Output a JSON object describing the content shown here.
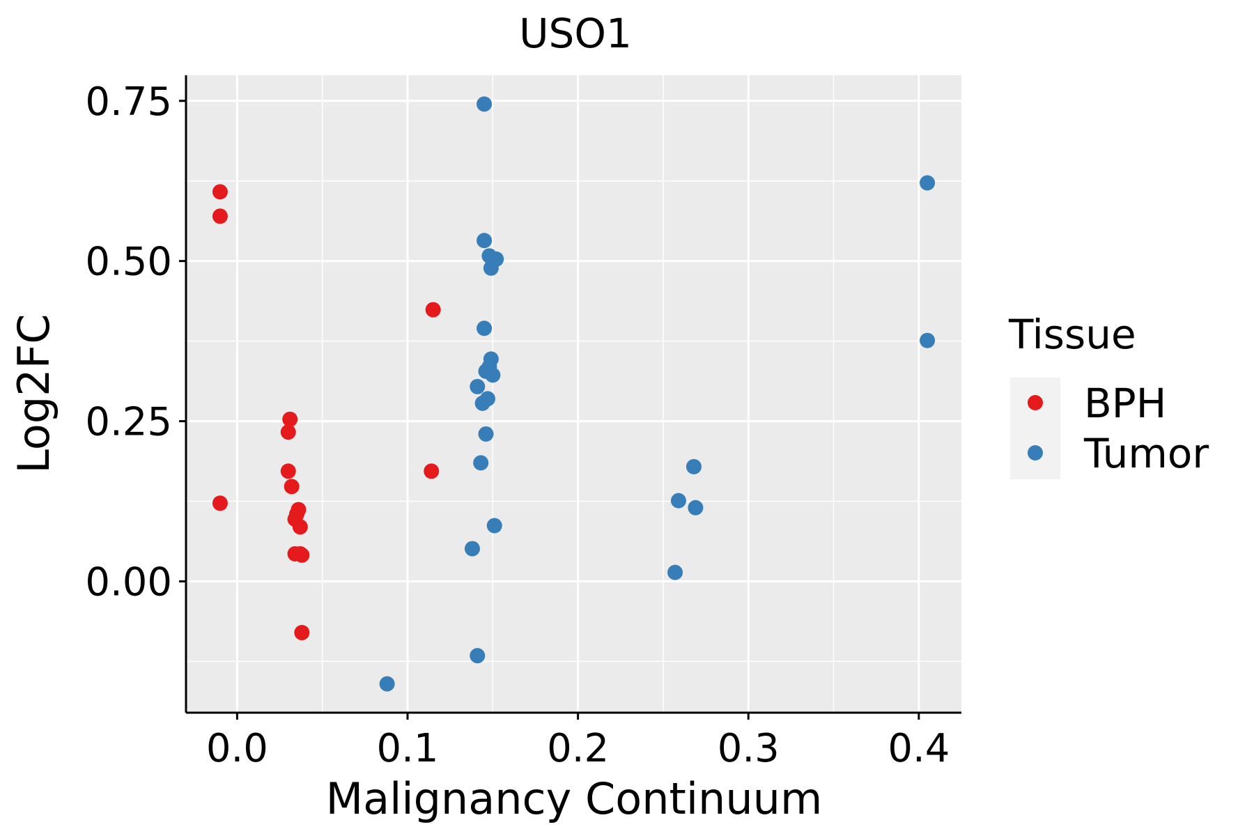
{
  "chart_data": {
    "type": "scatter",
    "title": "USO1",
    "xlabel": "Malignancy Continuum",
    "ylabel": "Log2FC",
    "xlim": [
      -0.03,
      0.425
    ],
    "ylim": [
      -0.205,
      0.79
    ],
    "x_ticks": [
      0.0,
      0.1,
      0.2,
      0.3,
      0.4
    ],
    "x_tick_labels": [
      "0.0",
      "0.1",
      "0.2",
      "0.3",
      "0.4"
    ],
    "y_ticks": [
      0.0,
      0.25,
      0.5,
      0.75
    ],
    "y_tick_labels": [
      "0.00",
      "0.25",
      "0.50",
      "0.75"
    ],
    "grid": true,
    "panel_background": "#EBEBEB",
    "legend": {
      "title": "Tissue",
      "position": "right",
      "entries": [
        {
          "label": "BPH",
          "color": "#E41A1C"
        },
        {
          "label": "Tumor",
          "color": "#377EB8"
        }
      ]
    },
    "series": [
      {
        "name": "BPH",
        "color": "#E41A1C",
        "points": [
          [
            -0.01,
            0.608
          ],
          [
            -0.01,
            0.57
          ],
          [
            -0.01,
            0.122
          ],
          [
            0.031,
            0.253
          ],
          [
            0.03,
            0.233
          ],
          [
            0.03,
            0.172
          ],
          [
            0.032,
            0.148
          ],
          [
            0.036,
            0.112
          ],
          [
            0.035,
            0.105
          ],
          [
            0.034,
            0.097
          ],
          [
            0.037,
            0.085
          ],
          [
            0.034,
            0.043
          ],
          [
            0.037,
            0.043
          ],
          [
            0.038,
            0.041
          ],
          [
            0.038,
            -0.08
          ],
          [
            0.115,
            0.424
          ],
          [
            0.114,
            0.172
          ]
        ]
      },
      {
        "name": "Tumor",
        "color": "#377EB8",
        "points": [
          [
            0.145,
            0.745
          ],
          [
            0.145,
            0.532
          ],
          [
            0.148,
            0.508
          ],
          [
            0.152,
            0.503
          ],
          [
            0.149,
            0.489
          ],
          [
            0.145,
            0.395
          ],
          [
            0.149,
            0.347
          ],
          [
            0.148,
            0.335
          ],
          [
            0.146,
            0.328
          ],
          [
            0.15,
            0.322
          ],
          [
            0.141,
            0.304
          ],
          [
            0.147,
            0.285
          ],
          [
            0.144,
            0.278
          ],
          [
            0.146,
            0.23
          ],
          [
            0.143,
            0.185
          ],
          [
            0.151,
            0.087
          ],
          [
            0.138,
            0.051
          ],
          [
            0.141,
            -0.116
          ],
          [
            0.088,
            -0.16
          ],
          [
            0.268,
            0.179
          ],
          [
            0.259,
            0.126
          ],
          [
            0.269,
            0.115
          ],
          [
            0.257,
            0.014
          ],
          [
            0.405,
            0.622
          ],
          [
            0.405,
            0.376
          ]
        ]
      }
    ]
  }
}
